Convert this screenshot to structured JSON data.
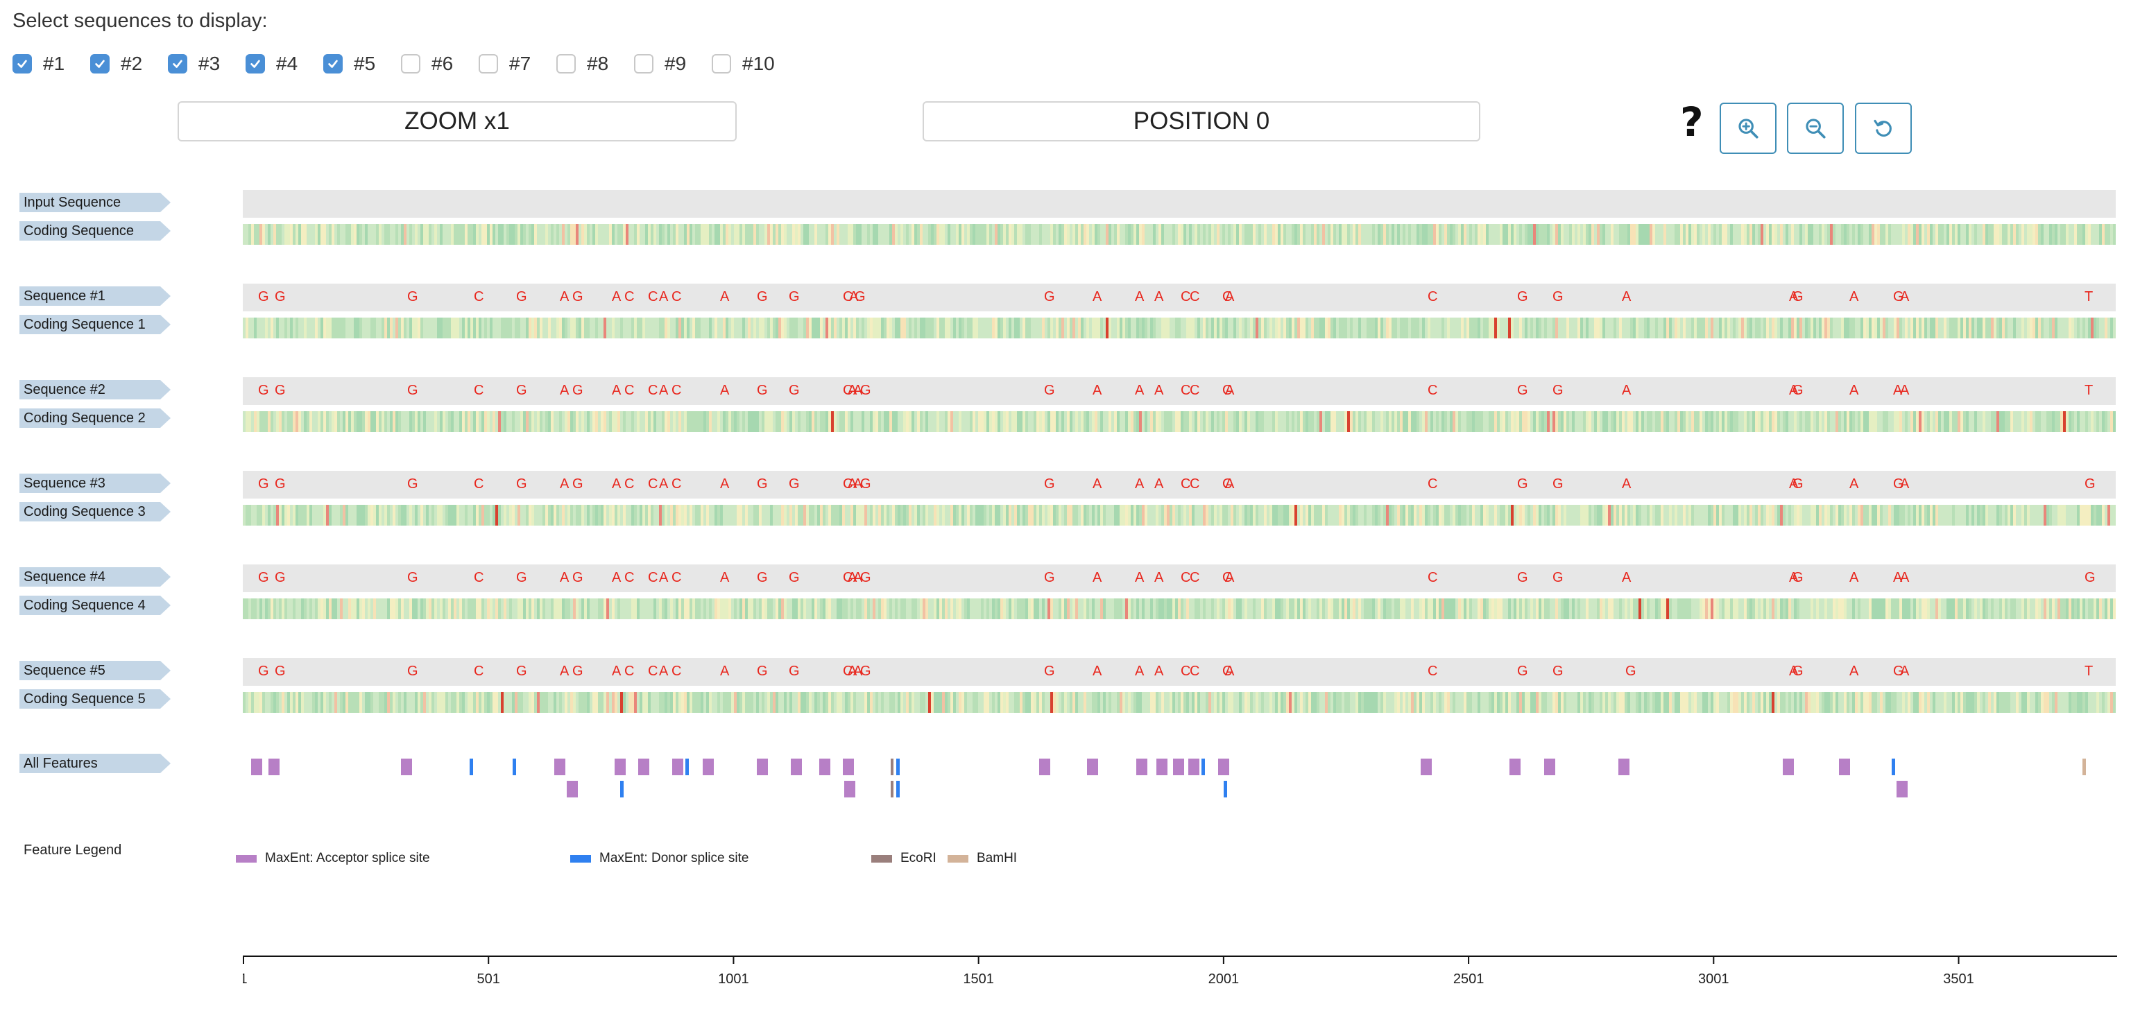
{
  "header": {
    "title": "Select sequences to display:"
  },
  "checkboxes": [
    {
      "label": "#1",
      "checked": true
    },
    {
      "label": "#2",
      "checked": true
    },
    {
      "label": "#3",
      "checked": true
    },
    {
      "label": "#4",
      "checked": true
    },
    {
      "label": "#5",
      "checked": true
    },
    {
      "label": "#6",
      "checked": false
    },
    {
      "label": "#7",
      "checked": false
    },
    {
      "label": "#8",
      "checked": false
    },
    {
      "label": "#9",
      "checked": false
    },
    {
      "label": "#10",
      "checked": false
    }
  ],
  "controls": {
    "zoom_label": "ZOOM x1",
    "position_label": "POSITION 0",
    "help_glyph": "?",
    "zoom_in_icon": "zoom-in-icon",
    "zoom_out_icon": "zoom-out-icon",
    "reset_icon": "reset-icon"
  },
  "tracks": {
    "input_label": "Input Sequence",
    "coding_label": "Coding Sequence",
    "sequences": [
      {
        "label": "Sequence #1",
        "coding_label": "Coding Sequence 1",
        "last": "T"
      },
      {
        "label": "Sequence #2",
        "coding_label": "Coding Sequence 2",
        "last": "T"
      },
      {
        "label": "Sequence #3",
        "coding_label": "Coding Sequence 3",
        "last": "G"
      },
      {
        "label": "Sequence #4",
        "coding_label": "Coding Sequence 4",
        "last": "G"
      },
      {
        "label": "Sequence #5",
        "coding_label": "Coding Sequence 5",
        "last": "T"
      }
    ]
  },
  "variants": {
    "seq1": [
      [
        "G",
        22
      ],
      [
        "G",
        46
      ],
      [
        "G",
        237
      ],
      [
        "C",
        333
      ],
      [
        "G",
        394
      ],
      [
        "A",
        457
      ],
      [
        "G",
        475
      ],
      [
        "A",
        532
      ],
      [
        "C",
        550
      ],
      [
        "C",
        584
      ],
      [
        "A",
        600
      ],
      [
        "C",
        618
      ],
      [
        "A",
        688
      ],
      [
        "G",
        741
      ],
      [
        "G",
        787
      ],
      [
        "C",
        865
      ],
      [
        "A",
        874
      ],
      [
        "G",
        882
      ],
      [
        "G",
        1155
      ],
      [
        "A",
        1225
      ],
      [
        "A",
        1286
      ],
      [
        "A",
        1314
      ],
      [
        "C",
        1352
      ],
      [
        "C",
        1365
      ],
      [
        "C",
        1412
      ],
      [
        "A",
        1416
      ],
      [
        "C",
        1708
      ],
      [
        "G",
        1837
      ],
      [
        "G",
        1888
      ],
      [
        "A",
        1988
      ],
      [
        "A",
        2229
      ],
      [
        "G",
        2234
      ],
      [
        "A",
        2316
      ],
      [
        "G",
        2379
      ],
      [
        "A",
        2389
      ],
      [
        "T",
        2655
      ]
    ],
    "seq2": [
      [
        "G",
        22
      ],
      [
        "G",
        46
      ],
      [
        "G",
        237
      ],
      [
        "C",
        333
      ],
      [
        "G",
        394
      ],
      [
        "A",
        457
      ],
      [
        "G",
        475
      ],
      [
        "A",
        532
      ],
      [
        "C",
        550
      ],
      [
        "C",
        584
      ],
      [
        "A",
        600
      ],
      [
        "C",
        618
      ],
      [
        "A",
        688
      ],
      [
        "G",
        741
      ],
      [
        "G",
        787
      ],
      [
        "C",
        865
      ],
      [
        "A",
        872
      ],
      [
        "A",
        880
      ],
      [
        "G",
        890
      ],
      [
        "G",
        1155
      ],
      [
        "A",
        1225
      ],
      [
        "A",
        1286
      ],
      [
        "A",
        1314
      ],
      [
        "C",
        1352
      ],
      [
        "C",
        1365
      ],
      [
        "C",
        1412
      ],
      [
        "A",
        1416
      ],
      [
        "C",
        1708
      ],
      [
        "G",
        1837
      ],
      [
        "G",
        1888
      ],
      [
        "A",
        1988
      ],
      [
        "A",
        2229
      ],
      [
        "G",
        2234
      ],
      [
        "A",
        2316
      ],
      [
        "A",
        2379
      ],
      [
        "A",
        2389
      ],
      [
        "T",
        2655
      ]
    ],
    "seq3": [
      [
        "G",
        22
      ],
      [
        "G",
        46
      ],
      [
        "G",
        237
      ],
      [
        "C",
        333
      ],
      [
        "G",
        394
      ],
      [
        "A",
        457
      ],
      [
        "G",
        475
      ],
      [
        "A",
        532
      ],
      [
        "C",
        550
      ],
      [
        "C",
        584
      ],
      [
        "A",
        600
      ],
      [
        "C",
        618
      ],
      [
        "A",
        688
      ],
      [
        "G",
        741
      ],
      [
        "G",
        787
      ],
      [
        "C",
        865
      ],
      [
        "A",
        872
      ],
      [
        "A",
        880
      ],
      [
        "G",
        890
      ],
      [
        "G",
        1155
      ],
      [
        "A",
        1225
      ],
      [
        "A",
        1286
      ],
      [
        "A",
        1314
      ],
      [
        "C",
        1352
      ],
      [
        "C",
        1365
      ],
      [
        "C",
        1412
      ],
      [
        "A",
        1416
      ],
      [
        "C",
        1708
      ],
      [
        "G",
        1837
      ],
      [
        "G",
        1888
      ],
      [
        "A",
        1988
      ],
      [
        "A",
        2229
      ],
      [
        "G",
        2234
      ],
      [
        "A",
        2316
      ],
      [
        "G",
        2379
      ],
      [
        "A",
        2389
      ],
      [
        "G",
        2655
      ]
    ],
    "seq4": [
      [
        "G",
        22
      ],
      [
        "G",
        46
      ],
      [
        "G",
        237
      ],
      [
        "C",
        333
      ],
      [
        "G",
        394
      ],
      [
        "A",
        457
      ],
      [
        "G",
        475
      ],
      [
        "A",
        532
      ],
      [
        "C",
        550
      ],
      [
        "C",
        584
      ],
      [
        "A",
        600
      ],
      [
        "C",
        618
      ],
      [
        "A",
        688
      ],
      [
        "G",
        741
      ],
      [
        "G",
        787
      ],
      [
        "C",
        865
      ],
      [
        "A",
        872
      ],
      [
        "A",
        880
      ],
      [
        "G",
        890
      ],
      [
        "G",
        1155
      ],
      [
        "A",
        1225
      ],
      [
        "A",
        1286
      ],
      [
        "A",
        1314
      ],
      [
        "C",
        1352
      ],
      [
        "C",
        1365
      ],
      [
        "C",
        1412
      ],
      [
        "A",
        1416
      ],
      [
        "C",
        1708
      ],
      [
        "G",
        1837
      ],
      [
        "G",
        1888
      ],
      [
        "A",
        1988
      ],
      [
        "A",
        2229
      ],
      [
        "G",
        2234
      ],
      [
        "A",
        2316
      ],
      [
        "A",
        2379
      ],
      [
        "A",
        2389
      ],
      [
        "G",
        2655
      ]
    ],
    "seq5": [
      [
        "G",
        22
      ],
      [
        "G",
        46
      ],
      [
        "G",
        237
      ],
      [
        "C",
        333
      ],
      [
        "G",
        394
      ],
      [
        "A",
        457
      ],
      [
        "G",
        475
      ],
      [
        "A",
        532
      ],
      [
        "C",
        550
      ],
      [
        "C",
        584
      ],
      [
        "A",
        600
      ],
      [
        "C",
        618
      ],
      [
        "A",
        688
      ],
      [
        "G",
        741
      ],
      [
        "G",
        787
      ],
      [
        "C",
        865
      ],
      [
        "A",
        872
      ],
      [
        "A",
        880
      ],
      [
        "G",
        890
      ],
      [
        "G",
        1155
      ],
      [
        "A",
        1225
      ],
      [
        "A",
        1286
      ],
      [
        "A",
        1314
      ],
      [
        "C",
        1352
      ],
      [
        "C",
        1365
      ],
      [
        "C",
        1412
      ],
      [
        "A",
        1416
      ],
      [
        "C",
        1708
      ],
      [
        "G",
        1837
      ],
      [
        "G",
        1888
      ],
      [
        "G",
        1993
      ],
      [
        "A",
        2229
      ],
      [
        "G",
        2234
      ],
      [
        "A",
        2316
      ],
      [
        "G",
        2379
      ],
      [
        "A",
        2389
      ],
      [
        "T",
        2655
      ]
    ]
  },
  "features": {
    "label": "All Features",
    "acceptor": [
      [
        12,
        0
      ],
      [
        37,
        0
      ],
      [
        228,
        0
      ],
      [
        449,
        0
      ],
      [
        536,
        0
      ],
      [
        570,
        0
      ],
      [
        619,
        0
      ],
      [
        663,
        0
      ],
      [
        741,
        0
      ],
      [
        790,
        0
      ],
      [
        831,
        0
      ],
      [
        865,
        0
      ],
      [
        1148,
        0
      ],
      [
        1217,
        0
      ],
      [
        1288,
        0
      ],
      [
        1317,
        0
      ],
      [
        1341,
        0
      ],
      [
        1363,
        0
      ],
      [
        1406,
        0
      ],
      [
        1698,
        0
      ],
      [
        1826,
        0
      ],
      [
        1876,
        0
      ],
      [
        1983,
        0
      ],
      [
        2220,
        0
      ],
      [
        2301,
        0
      ],
      [
        467,
        1
      ],
      [
        867,
        1
      ],
      [
        2384,
        1
      ]
    ],
    "donor": [
      [
        327,
        0
      ],
      [
        389,
        0
      ],
      [
        638,
        0
      ],
      [
        942,
        0
      ],
      [
        1382,
        0
      ],
      [
        2377,
        0
      ],
      [
        544,
        1
      ],
      [
        942,
        1
      ],
      [
        1414,
        1
      ]
    ],
    "ecori": [
      [
        934,
        0
      ],
      [
        934,
        1
      ]
    ],
    "bamhi": [
      [
        2652,
        0
      ]
    ]
  },
  "legend": {
    "title": "Feature Legend",
    "items": [
      {
        "label": "MaxEnt: Acceptor splice site",
        "color": "#b77fc6"
      },
      {
        "label": "MaxEnt: Donor splice site",
        "color": "#2f80f0"
      },
      {
        "label": "EcoRI",
        "color": "#9a7f7c"
      },
      {
        "label": "BamHI",
        "color": "#d3b399"
      }
    ]
  },
  "axis": {
    "ticks": [
      "1",
      "501",
      "1001",
      "1501",
      "2001",
      "2501",
      "3001",
      "3501"
    ],
    "tick_values": [
      1,
      501,
      1001,
      1501,
      2001,
      2501,
      3001,
      3501
    ],
    "max": 3822
  },
  "colors": {
    "variant": "#e8261d",
    "track_bg": "#e7e7e7",
    "tag": "#c4d6e6",
    "accent": "#3f8eb6",
    "checkbox_on": "#4a8fd6",
    "coding_palette": [
      "#cde8c5",
      "#b8dfb7",
      "#a6d8b0",
      "#e5efc2",
      "#f4eec1",
      "#f7e2b6",
      "#f2c1a3",
      "#e9867a",
      "#d8412f"
    ]
  }
}
